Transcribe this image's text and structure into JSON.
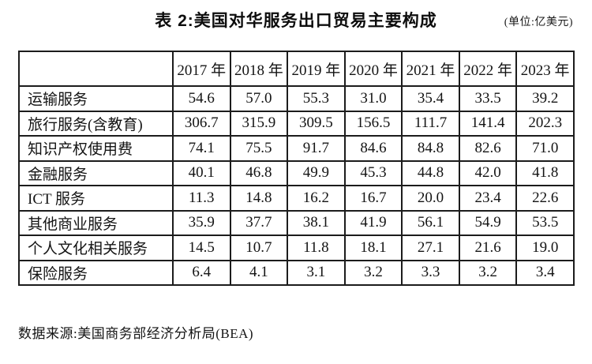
{
  "header": {
    "title": "表 2:美国对华服务出口贸易主要构成",
    "unit_note": "(单位:亿美元)"
  },
  "table": {
    "year_headers": [
      "2017 年",
      "2018 年",
      "2019 年",
      "2020 年",
      "2021 年",
      "2022 年",
      "2023 年"
    ],
    "rows": [
      {
        "label": "运输服务",
        "values": [
          "54.6",
          "57.0",
          "55.3",
          "31.0",
          "35.4",
          "33.5",
          "39.2"
        ]
      },
      {
        "label": "旅行服务(含教育)",
        "values": [
          "306.7",
          "315.9",
          "309.5",
          "156.5",
          "111.7",
          "141.4",
          "202.3"
        ]
      },
      {
        "label": "知识产权使用费",
        "values": [
          "74.1",
          "75.5",
          "91.7",
          "84.6",
          "84.8",
          "82.6",
          "71.0"
        ]
      },
      {
        "label": "金融服务",
        "values": [
          "40.1",
          "46.8",
          "49.9",
          "45.3",
          "44.8",
          "42.0",
          "41.8"
        ]
      },
      {
        "label": "ICT 服务",
        "values": [
          "11.3",
          "14.8",
          "16.2",
          "16.7",
          "20.0",
          "23.4",
          "22.6"
        ]
      },
      {
        "label": "其他商业服务",
        "values": [
          "35.9",
          "37.7",
          "38.1",
          "41.9",
          "56.1",
          "54.9",
          "53.5"
        ]
      },
      {
        "label": "个人文化相关服务",
        "values": [
          "14.5",
          "10.7",
          "11.8",
          "18.1",
          "27.1",
          "21.6",
          "19.0"
        ]
      },
      {
        "label": "保险服务",
        "values": [
          "6.4",
          "4.1",
          "3.1",
          "3.2",
          "3.3",
          "3.2",
          "3.4"
        ]
      }
    ]
  },
  "footer": {
    "source": "数据来源:美国商务部经济分析局(BEA)"
  }
}
